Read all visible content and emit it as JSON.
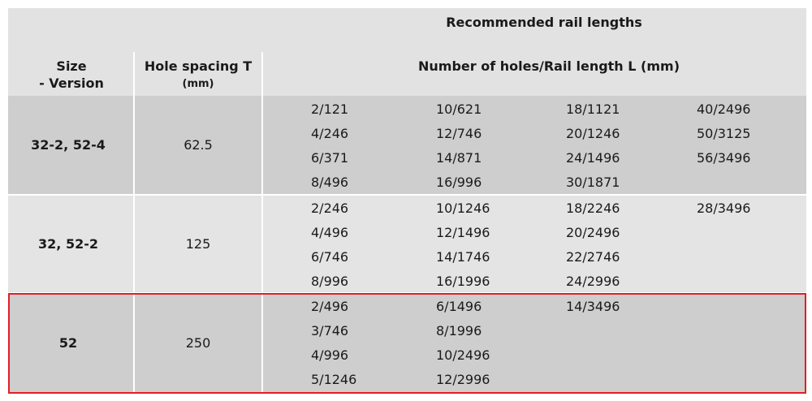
{
  "header": {
    "title": "Recommended rail lengths",
    "size": "Size",
    "version": "- Version",
    "spacing": "Hole spacing T",
    "spacing_unit": "(mm)",
    "lengths": "Number of holes/Rail length L (mm)"
  },
  "groups": [
    {
      "size": "32-2, 52-4",
      "spacing": "62.5",
      "columns": [
        [
          "2/121",
          "4/246",
          "6/371",
          "8/496"
        ],
        [
          "10/621",
          "12/746",
          "14/871",
          "16/996"
        ],
        [
          "18/1121",
          "20/1246",
          "24/1496",
          "30/1871"
        ],
        [
          "40/2496",
          "50/3125",
          "56/3496"
        ]
      ]
    },
    {
      "size": "32, 52-2",
      "spacing": "125",
      "columns": [
        [
          "2/246",
          "4/496",
          "6/746",
          "8/996"
        ],
        [
          "10/1246",
          "12/1496",
          "14/1746",
          "16/1996"
        ],
        [
          "18/2246",
          "20/2496",
          "22/2746",
          "24/2996"
        ],
        [
          "28/3496"
        ]
      ]
    },
    {
      "size": "52",
      "spacing": "250",
      "columns": [
        [
          "2/496",
          "3/746",
          "4/996",
          "5/1246"
        ],
        [
          "6/1496",
          "8/1996",
          "10/2496",
          "12/2996"
        ],
        [
          "14/3496"
        ]
      ]
    }
  ]
}
